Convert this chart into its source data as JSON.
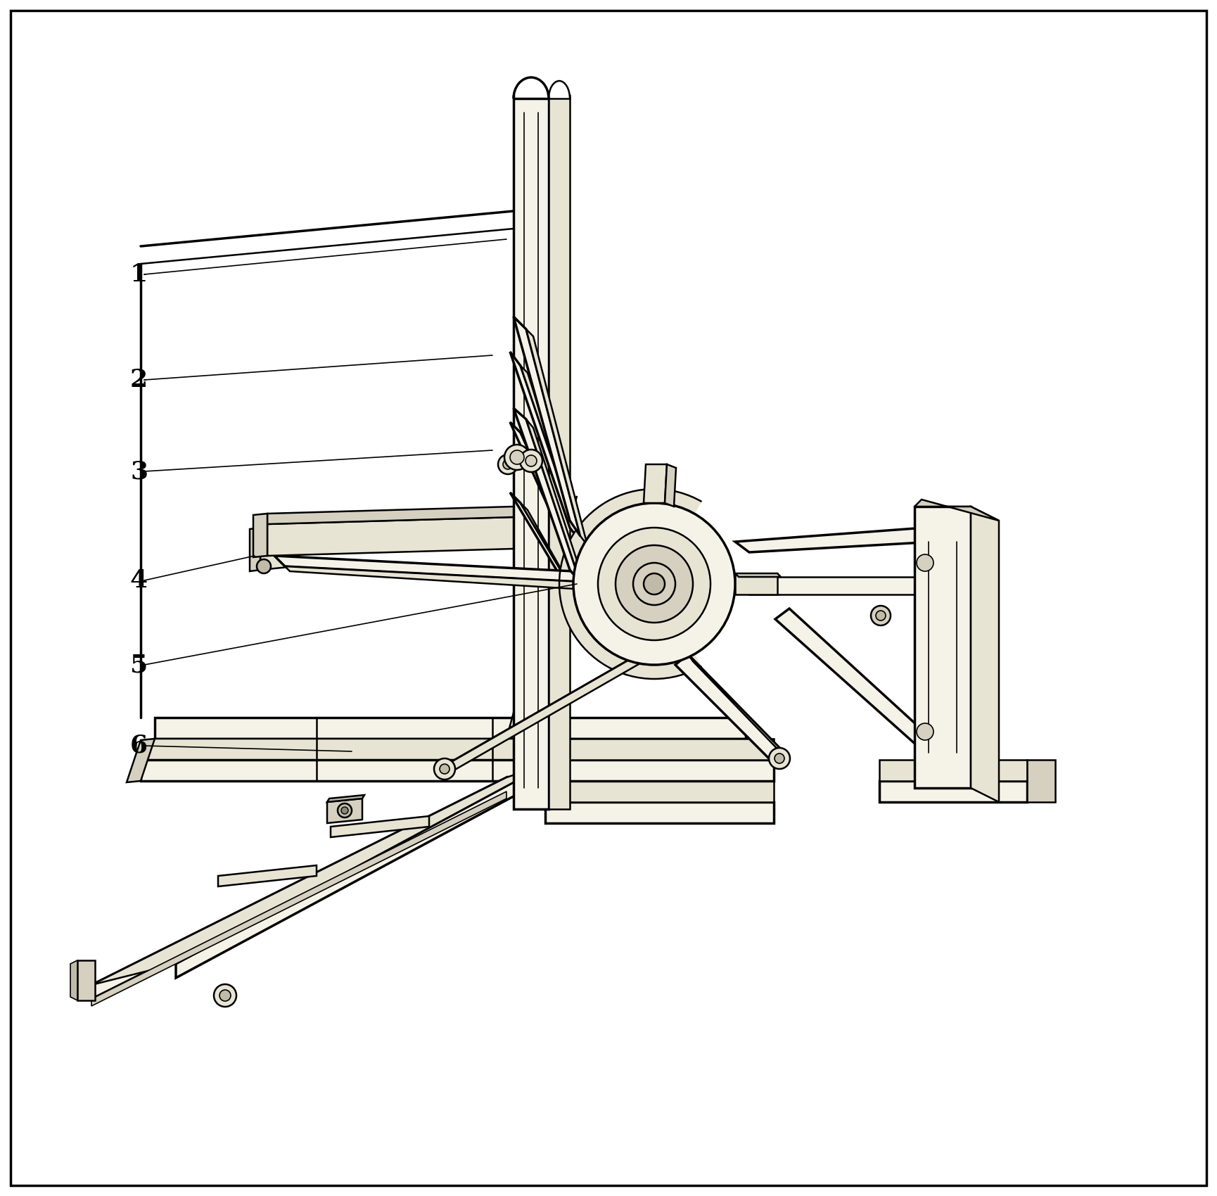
{
  "background_color": "#ffffff",
  "line_color": "#000000",
  "label_color": "#000000",
  "label_fontsize": 26,
  "label_fontweight": "bold",
  "figsize": [
    17.3,
    17.0
  ],
  "dpi": 100,
  "fill_light": "#f5f2e8",
  "fill_mid": "#e8e4d4",
  "fill_dark": "#d5d0c0",
  "fill_darkest": "#c0bba8"
}
